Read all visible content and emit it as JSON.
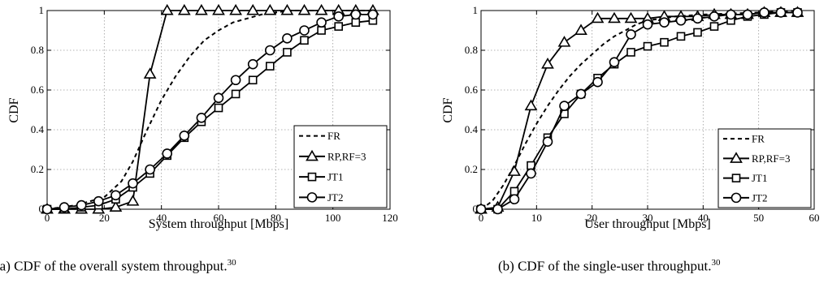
{
  "captions": [
    {
      "text": "(a) CDF of the overall system throughput.",
      "ref": "30"
    },
    {
      "text": "(b) CDF of the single-user throughput.",
      "ref": "30"
    }
  ],
  "chart_data": [
    {
      "type": "line",
      "xlabel": "System throughput [Mbps]",
      "ylabel": "CDF",
      "xlim": [
        0,
        120
      ],
      "ylim": [
        0,
        1
      ],
      "xticks": [
        0,
        20,
        40,
        60,
        80,
        100,
        120
      ],
      "yticks": [
        0,
        0.2,
        0.4,
        0.6,
        0.8,
        1
      ],
      "grid": true,
      "legend_position": "bottom-right",
      "series": [
        {
          "name": "FR",
          "marker": "none",
          "dash": true,
          "x": [
            0,
            10,
            20,
            26,
            30,
            35,
            40,
            45,
            50,
            55,
            60,
            65,
            70,
            75,
            80,
            85,
            90,
            100,
            115
          ],
          "y": [
            0,
            0.02,
            0.06,
            0.14,
            0.24,
            0.4,
            0.55,
            0.67,
            0.77,
            0.85,
            0.9,
            0.94,
            0.96,
            0.98,
            0.99,
            1.0,
            1.0,
            1.0,
            1.0
          ]
        },
        {
          "name": "RP,RF=3",
          "marker": "triangle",
          "dash": false,
          "x": [
            0,
            6,
            12,
            18,
            24,
            30,
            36,
            42,
            48,
            54,
            60,
            66,
            72,
            78,
            84,
            90,
            96,
            102,
            108,
            114
          ],
          "y": [
            0,
            0,
            0,
            0,
            0.01,
            0.04,
            0.68,
            1,
            1,
            1,
            1,
            1,
            1,
            1,
            1,
            1,
            1,
            1,
            1,
            1
          ]
        },
        {
          "name": "JT1",
          "marker": "square",
          "dash": false,
          "x": [
            0,
            6,
            12,
            18,
            24,
            30,
            36,
            42,
            48,
            54,
            60,
            66,
            72,
            78,
            84,
            90,
            96,
            102,
            108,
            114
          ],
          "y": [
            0,
            0,
            0.01,
            0.02,
            0.05,
            0.11,
            0.18,
            0.27,
            0.36,
            0.44,
            0.51,
            0.58,
            0.65,
            0.72,
            0.79,
            0.85,
            0.9,
            0.92,
            0.94,
            0.95
          ]
        },
        {
          "name": "JT2",
          "marker": "circle",
          "dash": false,
          "x": [
            0,
            6,
            12,
            18,
            24,
            30,
            36,
            42,
            48,
            54,
            60,
            66,
            72,
            78,
            84,
            90,
            96,
            102,
            108,
            114
          ],
          "y": [
            0,
            0.01,
            0.02,
            0.04,
            0.07,
            0.13,
            0.2,
            0.28,
            0.37,
            0.46,
            0.56,
            0.65,
            0.73,
            0.8,
            0.86,
            0.9,
            0.94,
            0.97,
            0.98,
            0.98
          ]
        }
      ]
    },
    {
      "type": "line",
      "xlabel": "User throughput [Mbps]",
      "ylabel": "CDF",
      "xlim": [
        0,
        60
      ],
      "ylim": [
        0,
        1
      ],
      "xticks": [
        0,
        10,
        20,
        30,
        40,
        50,
        60
      ],
      "yticks": [
        0,
        0.2,
        0.4,
        0.6,
        0.8,
        1
      ],
      "grid": true,
      "legend_position": "bottom-right",
      "series": [
        {
          "name": "FR",
          "marker": "none",
          "dash": true,
          "x": [
            0,
            2,
            4,
            6,
            8,
            10,
            12,
            14,
            16,
            18,
            20,
            22,
            24,
            26,
            28,
            30,
            35,
            40,
            50,
            57
          ],
          "y": [
            0,
            0.04,
            0.12,
            0.22,
            0.33,
            0.43,
            0.52,
            0.6,
            0.67,
            0.73,
            0.78,
            0.83,
            0.87,
            0.9,
            0.93,
            0.95,
            0.97,
            0.98,
            0.99,
            1.0
          ]
        },
        {
          "name": "RP,RF=3",
          "marker": "triangle",
          "dash": false,
          "x": [
            0,
            3,
            6,
            9,
            12,
            15,
            18,
            21,
            24,
            27,
            30,
            33,
            36,
            39,
            42,
            45,
            48,
            51,
            54,
            57
          ],
          "y": [
            0,
            0.01,
            0.19,
            0.52,
            0.73,
            0.84,
            0.9,
            0.96,
            0.96,
            0.96,
            0.96,
            0.97,
            0.97,
            0.97,
            0.98,
            0.98,
            0.98,
            0.99,
            0.99,
            0.99
          ]
        },
        {
          "name": "JT1",
          "marker": "square",
          "dash": false,
          "x": [
            0,
            3,
            6,
            9,
            12,
            15,
            18,
            21,
            24,
            27,
            30,
            33,
            36,
            39,
            42,
            45,
            48,
            51,
            54,
            57
          ],
          "y": [
            0,
            0,
            0.09,
            0.22,
            0.36,
            0.48,
            0.58,
            0.66,
            0.73,
            0.79,
            0.82,
            0.84,
            0.87,
            0.89,
            0.92,
            0.95,
            0.97,
            0.98,
            0.99,
            0.99
          ]
        },
        {
          "name": "JT2",
          "marker": "circle",
          "dash": false,
          "x": [
            0,
            3,
            6,
            9,
            12,
            15,
            18,
            21,
            24,
            27,
            30,
            33,
            36,
            39,
            42,
            45,
            48,
            51,
            54,
            57
          ],
          "y": [
            0,
            0,
            0.05,
            0.18,
            0.34,
            0.52,
            0.58,
            0.64,
            0.74,
            0.88,
            0.93,
            0.94,
            0.95,
            0.96,
            0.97,
            0.98,
            0.98,
            0.99,
            0.99,
            0.99
          ]
        }
      ]
    }
  ]
}
